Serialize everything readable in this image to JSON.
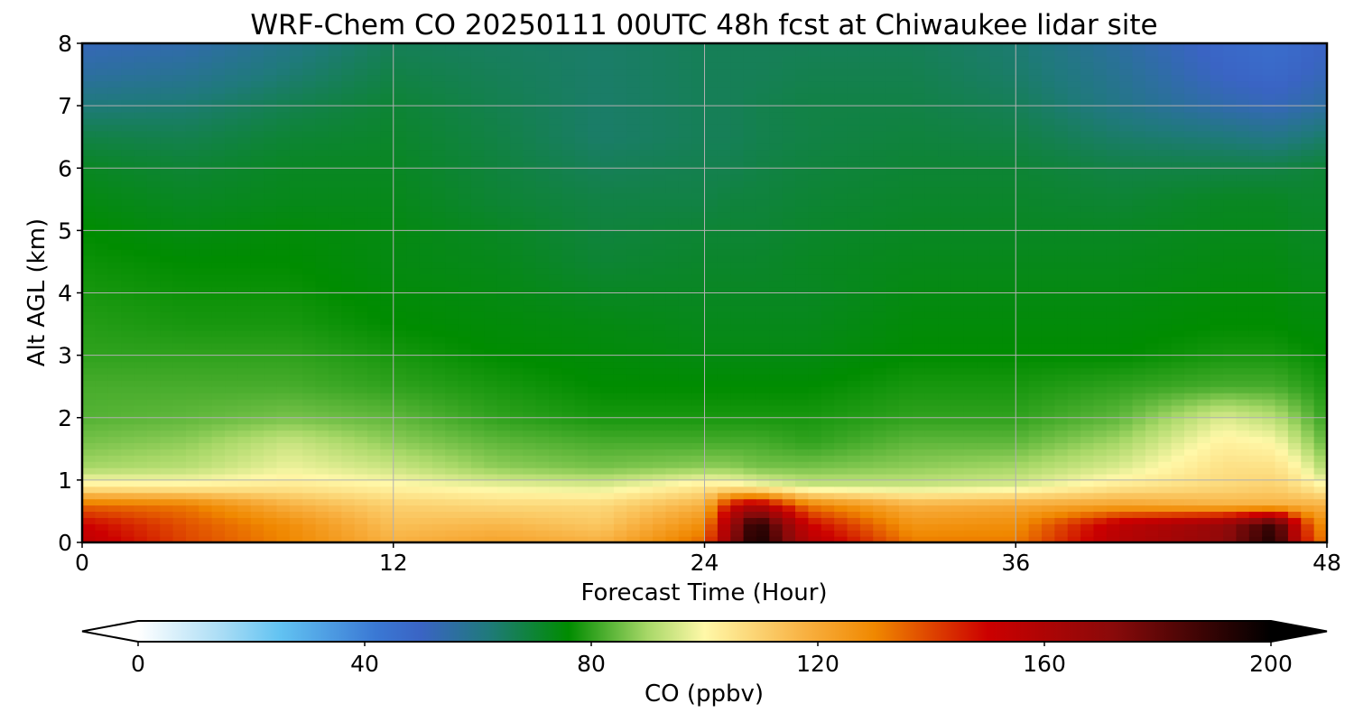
{
  "chart_data": {
    "type": "heatmap",
    "title": "WRF-Chem CO  20250111 00UTC 48h fcst at Chiwaukee lidar site",
    "xlabel": "Forecast Time (Hour)",
    "ylabel": "Alt AGL (km)",
    "xlim": [
      0,
      48
    ],
    "ylim": [
      0,
      8
    ],
    "xticks": [
      "0",
      "12",
      "24",
      "36",
      "48"
    ],
    "yticks": [
      "0",
      "1",
      "2",
      "3",
      "4",
      "5",
      "6",
      "7",
      "8"
    ],
    "grid": true,
    "colorbar": {
      "label": "CO  (ppbv)",
      "range": [
        0,
        200
      ],
      "extend": "both",
      "ticks": [
        "0",
        "40",
        "80",
        "120",
        "160",
        "200"
      ],
      "stops": [
        {
          "value": 0,
          "color": "#ffffff"
        },
        {
          "value": 15,
          "color": "#a8dcf5"
        },
        {
          "value": 25,
          "color": "#62c3f2"
        },
        {
          "value": 42,
          "color": "#3a78d4"
        },
        {
          "value": 50,
          "color": "#3a64c4"
        },
        {
          "value": 62,
          "color": "#1f7a7a"
        },
        {
          "value": 76,
          "color": "#008c00"
        },
        {
          "value": 90,
          "color": "#a8d868"
        },
        {
          "value": 100,
          "color": "#fff8a8"
        },
        {
          "value": 118,
          "color": "#f8b040"
        },
        {
          "value": 130,
          "color": "#f08800"
        },
        {
          "value": 150,
          "color": "#cc0000"
        },
        {
          "value": 172,
          "color": "#8a0a0a"
        },
        {
          "value": 200,
          "color": "#000000"
        }
      ]
    },
    "field": {
      "description_note": "",
      "hours": [
        0,
        4,
        8,
        12,
        16,
        20,
        24,
        25,
        26,
        28,
        32,
        36,
        40,
        44,
        46,
        47,
        48
      ],
      "altitudes_km": [
        0,
        0.3,
        0.6,
        0.9,
        1.2,
        1.6,
        2.0,
        2.5,
        3.0,
        3.5,
        4.0,
        4.5,
        5.0,
        5.5,
        6.0,
        6.5,
        7.0,
        7.5,
        8.0
      ],
      "rows_by_altitude": [
        [
          155,
          140,
          130,
          118,
          122,
          118,
          135,
          170,
          198,
          158,
          132,
          132,
          158,
          170,
          195,
          150,
          130
        ],
        [
          150,
          138,
          128,
          114,
          116,
          112,
          128,
          165,
          195,
          150,
          126,
          128,
          155,
          168,
          190,
          145,
          125
        ],
        [
          135,
          132,
          118,
          110,
          108,
          108,
          118,
          150,
          160,
          132,
          118,
          120,
          122,
          118,
          118,
          118,
          118
        ],
        [
          103,
          102,
          104,
          101,
          98,
          96,
          104,
          103,
          100,
          94,
          94,
          96,
          104,
          108,
          110,
          106,
          100
        ],
        [
          90,
          92,
          98,
          94,
          88,
          86,
          88,
          88,
          86,
          86,
          88,
          90,
          96,
          106,
          106,
          100,
          90
        ],
        [
          86,
          88,
          94,
          88,
          84,
          82,
          82,
          82,
          82,
          80,
          84,
          84,
          90,
          102,
          100,
          92,
          84
        ],
        [
          83,
          84,
          86,
          84,
          80,
          78,
          78,
          78,
          78,
          78,
          80,
          80,
          84,
          96,
          92,
          86,
          80
        ],
        [
          82,
          82,
          82,
          80,
          78,
          76,
          76,
          76,
          76,
          76,
          78,
          78,
          80,
          82,
          82,
          80,
          78
        ],
        [
          80,
          80,
          80,
          78,
          76,
          75,
          74,
          74,
          74,
          74,
          76,
          76,
          76,
          78,
          78,
          77,
          76
        ],
        [
          79,
          78,
          78,
          76,
          75,
          74,
          73,
          73,
          73,
          73,
          75,
          75,
          75,
          76,
          76,
          75,
          75
        ],
        [
          78,
          77,
          77,
          75,
          74,
          72,
          72,
          72,
          72,
          72,
          74,
          74,
          74,
          75,
          75,
          74,
          74
        ],
        [
          77,
          76,
          76,
          74,
          73,
          70,
          71,
          71,
          71,
          72,
          73,
          73,
          73,
          74,
          74,
          73,
          73
        ],
        [
          76,
          74,
          75,
          74,
          72,
          69,
          70,
          70,
          70,
          71,
          72,
          72,
          72,
          73,
          73,
          72,
          72
        ],
        [
          74,
          72,
          73,
          73,
          70,
          68,
          68,
          69,
          69,
          70,
          71,
          71,
          70,
          72,
          72,
          71,
          71
        ],
        [
          72,
          70,
          72,
          72,
          69,
          66,
          67,
          67,
          68,
          69,
          70,
          70,
          68,
          68,
          68,
          69,
          70
        ],
        [
          68,
          67,
          70,
          71,
          68,
          64,
          66,
          66,
          67,
          68,
          69,
          68,
          64,
          62,
          60,
          62,
          64
        ],
        [
          62,
          63,
          67,
          70,
          67,
          64,
          66,
          66,
          67,
          68,
          68,
          66,
          60,
          54,
          52,
          54,
          56
        ],
        [
          56,
          58,
          63,
          68,
          66,
          64,
          66,
          66,
          66,
          67,
          67,
          64,
          58,
          50,
          48,
          50,
          52
        ],
        [
          52,
          54,
          60,
          66,
          65,
          64,
          66,
          66,
          66,
          66,
          66,
          63,
          56,
          48,
          46,
          48,
          50
        ]
      ]
    }
  }
}
